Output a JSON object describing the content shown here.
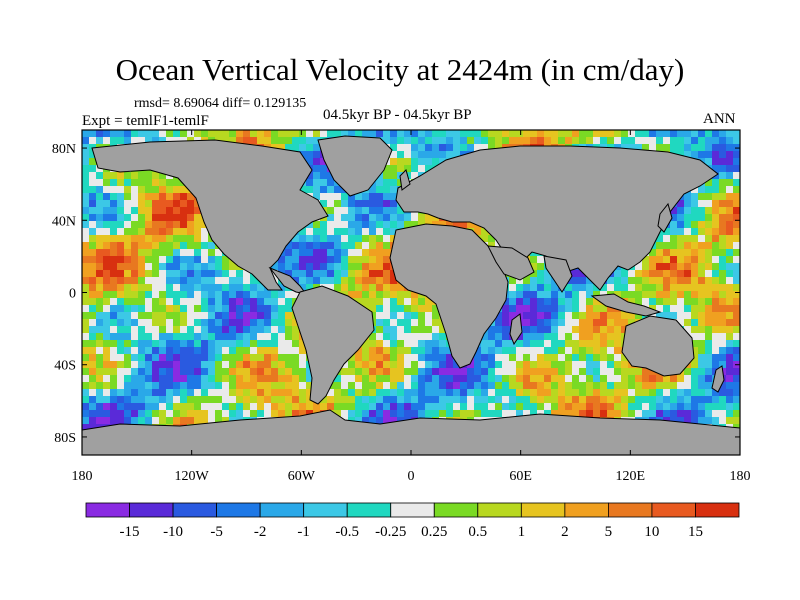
{
  "plot": {
    "title": "Ocean Vertical Velocity at 2424m (in cm/day)",
    "stats": "rmsd= 8.69064  diff= 0.129135",
    "experiment": "Expt = temlF1-temlF",
    "period": "04.5kyr BP - 04.5kyr BP",
    "season": "ANN"
  },
  "axes": {
    "lat_labels": [
      "80N",
      "40N",
      "0",
      "40S",
      "80S"
    ],
    "lon_labels": [
      "180",
      "120W",
      "60W",
      "0",
      "60E",
      "120E",
      "180"
    ],
    "lat_values": [
      80,
      40,
      0,
      -40,
      -80
    ],
    "lon_values": [
      -180,
      -120,
      -60,
      0,
      60,
      120,
      180
    ],
    "lat_range": [
      -90,
      90
    ],
    "lon_range": [
      -180,
      180
    ]
  },
  "colorbar": {
    "labels": [
      "-15",
      "-10",
      "-5",
      "-2",
      "-1",
      "-0.5",
      "-0.25",
      "0.25",
      "0.5",
      "1",
      "2",
      "5",
      "10",
      "15"
    ],
    "colors": [
      "#8a2be2",
      "#5a2ad8",
      "#2a5ae0",
      "#1e78e6",
      "#2aa8e8",
      "#3cc8e6",
      "#20d8c0",
      "#eaeaea",
      "#7ada24",
      "#b8d820",
      "#e6c420",
      "#f0a020",
      "#e87820",
      "#e85a20",
      "#d83010"
    ]
  },
  "colors": {
    "land": "#a0a0a0",
    "coast": "#000000"
  }
}
